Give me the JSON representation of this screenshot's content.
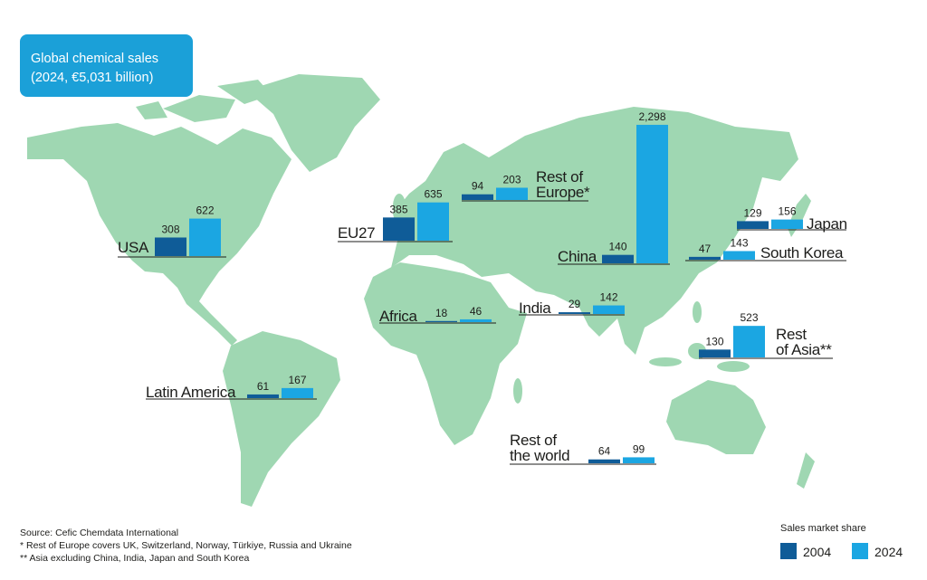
{
  "title_lines": [
    "Global chemical sales",
    "(2024, €5,031 billion)"
  ],
  "series": [
    {
      "name": "2004",
      "color": "#0f5c98"
    },
    {
      "name": "2024",
      "color": "#1ba6e2"
    }
  ],
  "legend_title": "Sales market share",
  "regions": [
    {
      "name_lines": [
        "USA"
      ],
      "values": [
        308,
        622
      ]
    },
    {
      "name_lines": [
        "EU27"
      ],
      "values": [
        385,
        635
      ]
    },
    {
      "name_lines": [
        "Rest of",
        "Europe*"
      ],
      "values": [
        94,
        203
      ]
    },
    {
      "name_lines": [
        "China"
      ],
      "values": [
        140,
        2298
      ],
      "value_labels": [
        "140",
        "2,298"
      ]
    },
    {
      "name_lines": [
        "Japan"
      ],
      "values": [
        129,
        156
      ]
    },
    {
      "name_lines": [
        "South Korea"
      ],
      "values": [
        47,
        143
      ]
    },
    {
      "name_lines": [
        "Africa"
      ],
      "values": [
        18,
        46
      ]
    },
    {
      "name_lines": [
        "India"
      ],
      "values": [
        29,
        142
      ]
    },
    {
      "name_lines": [
        "Rest",
        "of Asia**"
      ],
      "values": [
        130,
        523
      ]
    },
    {
      "name_lines": [
        "Latin America"
      ],
      "values": [
        61,
        167
      ]
    },
    {
      "name_lines": [
        "Rest of",
        "the world"
      ],
      "values": [
        64,
        99
      ]
    }
  ],
  "notes": [
    "Source: Cefic Chemdata International",
    "*  Rest of Europe covers UK, Switzerland, Norway, Türkiye, Russia and Ukraine",
    "** Asia excluding China, India, Japan and South Korea"
  ]
}
